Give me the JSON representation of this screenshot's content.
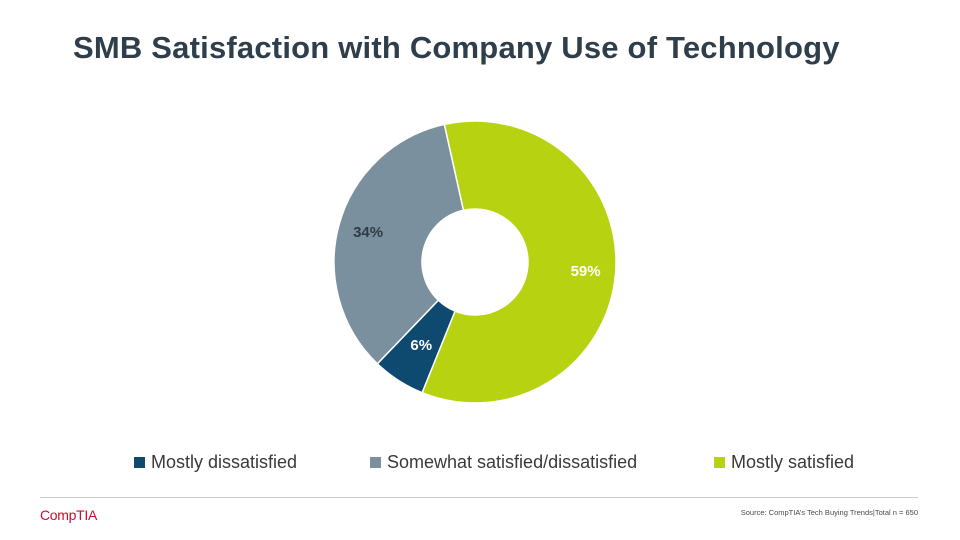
{
  "slide": {
    "title": "SMB Satisfaction with Company Use of Technology",
    "logo_text": "CompTIA",
    "source": "Source:  CompTIA’s Tech Buying Trends|Total  n = 650"
  },
  "chart_data": {
    "type": "pie",
    "variant": "donut",
    "title": "SMB Satisfaction with Company Use of Technology",
    "categories": [
      "Mostly dissatisfied",
      "Somewhat satisfied/dissatisfied",
      "Mostly satisfied"
    ],
    "values": [
      6,
      34,
      59
    ],
    "labels": [
      "6%",
      "34%",
      "59%"
    ],
    "colors": [
      "#0e4a6f",
      "#7a909f",
      "#b7d210"
    ],
    "label_colors": [
      "#ffffff",
      "#2f3b46",
      "#ffffff"
    ],
    "legend_position": "bottom"
  }
}
